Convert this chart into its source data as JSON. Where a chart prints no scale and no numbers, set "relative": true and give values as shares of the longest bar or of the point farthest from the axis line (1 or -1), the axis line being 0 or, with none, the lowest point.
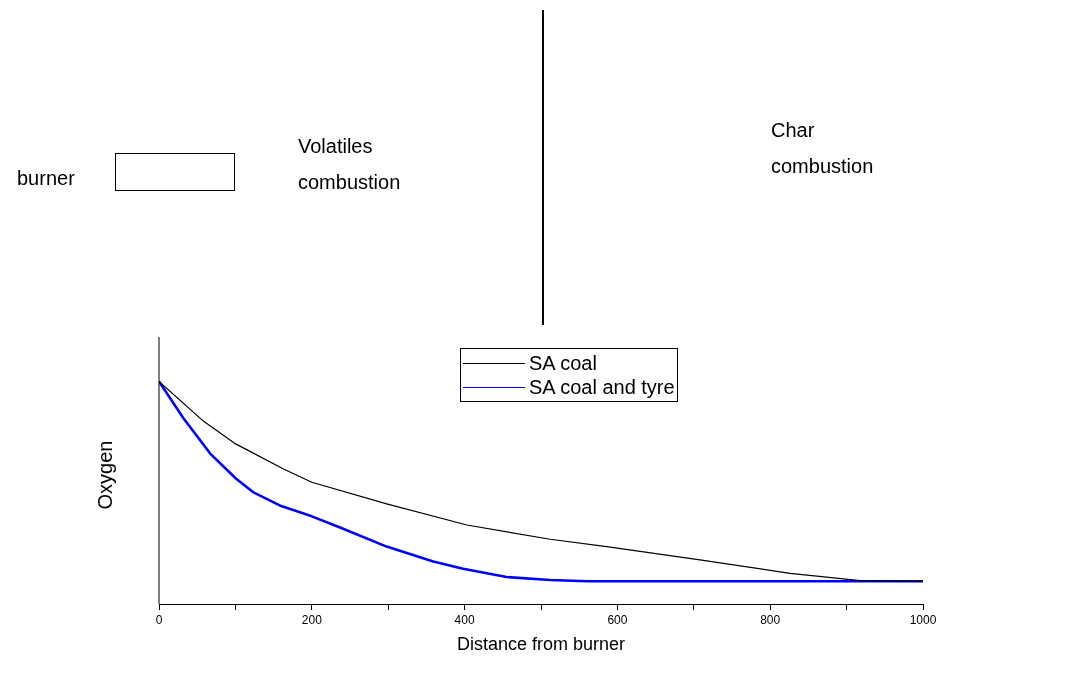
{
  "chart_data": {
    "type": "line",
    "relative": true,
    "xlabel": "Distance from burner",
    "ylabel": "Oxygen",
    "annotations": [
      "burner",
      "Volatiles\ncombustion",
      "Char\ncombustion"
    ],
    "xlim": [
      0,
      1000
    ],
    "xticks": [
      0,
      {
        "value": 100,
        "label": null
      },
      200,
      {
        "value": 300,
        "label": null
      },
      400,
      {
        "value": 500,
        "label": null
      },
      600,
      {
        "value": 700,
        "label": null
      },
      800,
      {
        "value": 900,
        "label": null
      },
      1000
    ],
    "legend": "top",
    "grid": false,
    "marker": "none",
    "line_style": "solid",
    "series": [
      {
        "name": "SA coal",
        "color": "#000000",
        "x": [
          0,
          58,
          99,
          163,
          200,
          298,
          403,
          512,
          586,
          708,
          826,
          918,
          1000
        ],
        "values": [
          1,
          0.822,
          0.722,
          0.607,
          0.547,
          0.45,
          0.355,
          0.291,
          0.258,
          0.198,
          0.138,
          0.105,
          0.102
        ]
      },
      {
        "name": "SA coal and tyre",
        "color": "#0000ff",
        "x": [
          0,
          32,
          67,
          101,
          123,
          158,
          200,
          237,
          298,
          359,
          398,
          455,
          512,
          561,
          1000
        ],
        "values": [
          1,
          0.835,
          0.676,
          0.563,
          0.503,
          0.443,
          0.394,
          0.344,
          0.258,
          0.191,
          0.158,
          0.121,
          0.108,
          0.102,
          0.102
        ]
      }
    ]
  }
}
